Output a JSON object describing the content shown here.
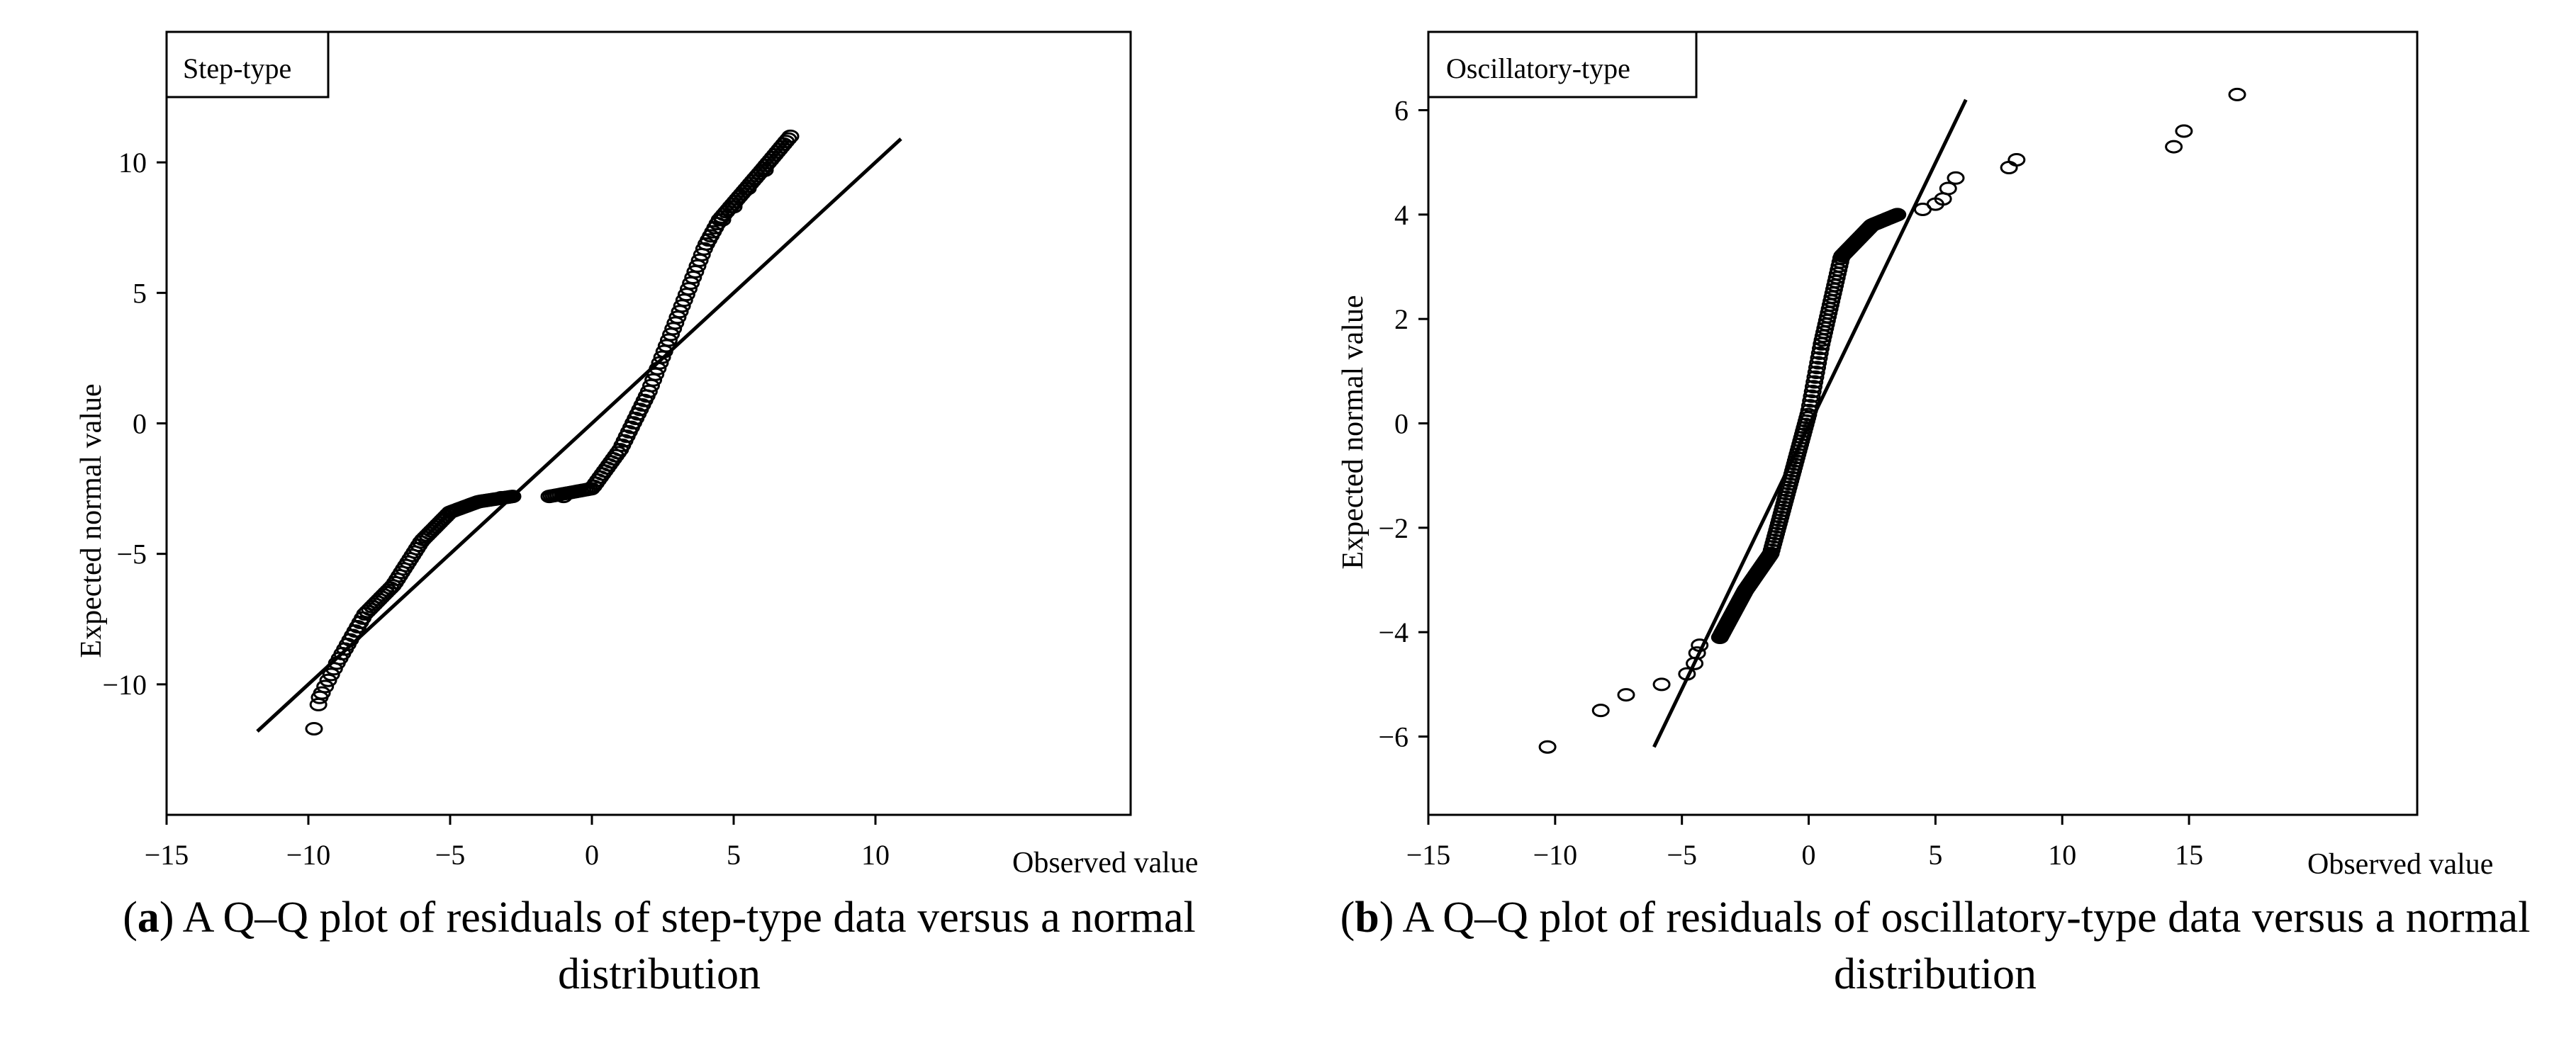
{
  "chart_data": [
    {
      "type": "scatter",
      "legend": "Step-type",
      "xlabel": "Observed value",
      "ylabel": "Expected normal value",
      "xlim": [
        -15,
        19
      ],
      "ylim": [
        -15,
        15
      ],
      "xticks": [
        -15,
        -10,
        -5,
        0,
        5,
        10
      ],
      "yticks": [
        -10,
        -5,
        0,
        5,
        10
      ],
      "reference_line": {
        "x": [
          -11.8,
          10.9
        ],
        "y": [
          -11.8,
          10.9
        ]
      },
      "series": [
        {
          "name": "Step-type residuals",
          "curve": "step",
          "x_range": [
            -9.8,
            7.0
          ],
          "n": 200
        }
      ],
      "caption": {
        "label": "a",
        "text": "A Q–Q plot of residuals of step-type data versus a normal distribution"
      }
    },
    {
      "type": "scatter",
      "legend": "Oscillatory-type",
      "xlabel": "Observed value",
      "ylabel": "Expected normal value",
      "xlim": [
        -15,
        24
      ],
      "ylim": [
        -7.5,
        7.5
      ],
      "xticks": [
        -15,
        -10,
        -5,
        0,
        5,
        10,
        15
      ],
      "yticks": [
        -6,
        -4,
        -2,
        0,
        2,
        4,
        6
      ],
      "reference_line": {
        "x": [
          -6.1,
          6.2
        ],
        "y": [
          -6.2,
          6.2
        ]
      },
      "series": [
        {
          "name": "Oscillatory-type residuals",
          "curve": "oscillatory",
          "x_range": [
            -10.3,
            16.9
          ],
          "n": 200
        }
      ],
      "caption": {
        "label": "b",
        "text": "A Q–Q plot of residuals of oscillatory-type data versus a normal distribution"
      }
    }
  ]
}
